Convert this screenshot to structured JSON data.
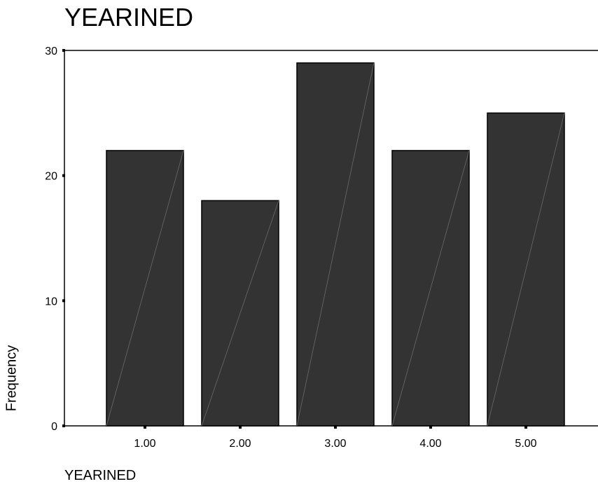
{
  "chart_data": {
    "type": "bar",
    "title": "YEARINED",
    "xlabel": "YEARINED",
    "ylabel": "Frequency",
    "categories": [
      "1.00",
      "2.00",
      "3.00",
      "4.00",
      "5.00"
    ],
    "values": [
      22,
      18,
      29,
      22,
      25
    ],
    "ylim": [
      0,
      30
    ],
    "yticks": [
      "0",
      "10",
      "20",
      "30"
    ],
    "grid": false,
    "colors": {
      "bar": "#333333",
      "bar_edge": "#000000",
      "axis": "#000000"
    }
  }
}
